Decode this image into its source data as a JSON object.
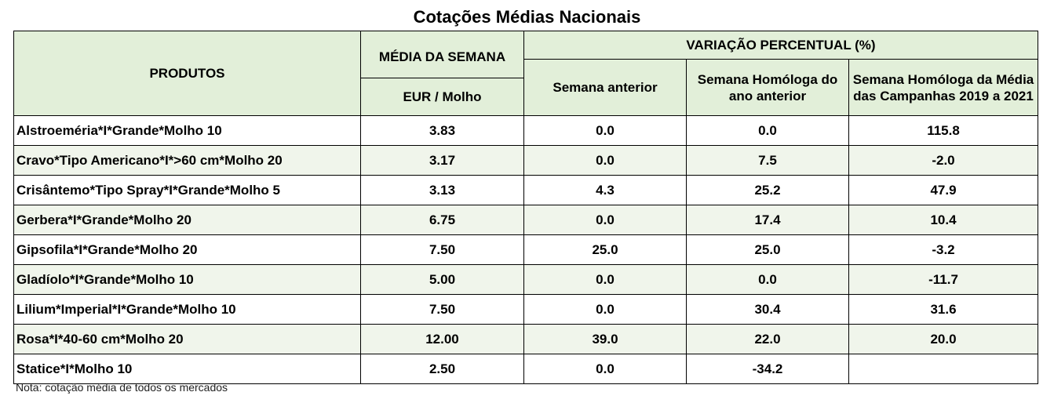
{
  "title": "Cotações Médias Nacionais",
  "header": {
    "produtos": "PRODUTOS",
    "media": "MÉDIA DA SEMANA",
    "unit": "EUR / Molho",
    "variacao": "VARIAÇÃO PERCENTUAL (%)",
    "semana_anterior": "Semana anterior",
    "homologa_ano": "Semana Homóloga do ano anterior",
    "homologa_campanhas": "Semana Homóloga da Média das Campanhas 2019 a 2021"
  },
  "rows": [
    {
      "produto": "Alstroeméria*I*Grande*Molho 10",
      "media": "3.83",
      "anterior": "0.0",
      "homologa": "0.0",
      "campanhas": "115.8"
    },
    {
      "produto": "Cravo*Tipo Americano*I*>60 cm*Molho 20",
      "media": "3.17",
      "anterior": "0.0",
      "homologa": "7.5",
      "campanhas": "-2.0"
    },
    {
      "produto": "Crisântemo*Tipo Spray*I*Grande*Molho 5",
      "media": "3.13",
      "anterior": "4.3",
      "homologa": "25.2",
      "campanhas": "47.9"
    },
    {
      "produto": "Gerbera*I*Grande*Molho 20",
      "media": "6.75",
      "anterior": "0.0",
      "homologa": "17.4",
      "campanhas": "10.4"
    },
    {
      "produto": "Gipsofila*I*Grande*Molho 20",
      "media": "7.50",
      "anterior": "25.0",
      "homologa": "25.0",
      "campanhas": "-3.2"
    },
    {
      "produto": "Gladíolo*I*Grande*Molho 10",
      "media": "5.00",
      "anterior": "0.0",
      "homologa": "0.0",
      "campanhas": "-11.7"
    },
    {
      "produto": "Lilium*Imperial*I*Grande*Molho 10",
      "media": "7.50",
      "anterior": "0.0",
      "homologa": "30.4",
      "campanhas": "31.6"
    },
    {
      "produto": "Rosa*I*40-60 cm*Molho 20",
      "media": "12.00",
      "anterior": "39.0",
      "homologa": "22.0",
      "campanhas": "20.0"
    },
    {
      "produto": "Statice*I*Molho 10",
      "media": "2.50",
      "anterior": "0.0",
      "homologa": "-34.2",
      "campanhas": ""
    }
  ],
  "note": "Nota: cotação média de todos os mercados"
}
